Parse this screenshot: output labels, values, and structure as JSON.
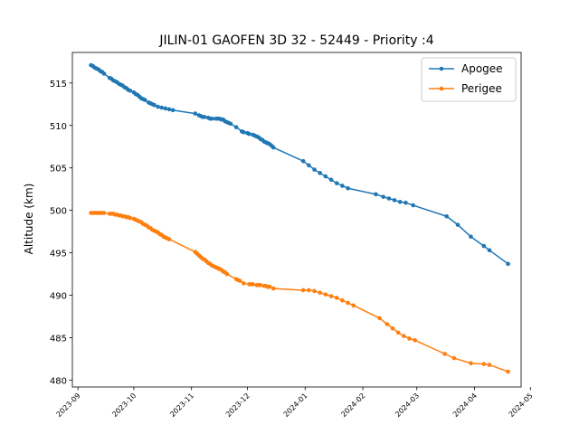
{
  "chart_data": {
    "type": "line",
    "title": "JILIN-01 GAOFEN 3D 32 - 52449 - Priority :4",
    "xlabel": "",
    "ylabel": "Altitude (km)",
    "x_type": "date",
    "xlim": [
      "2023-08-29",
      "2024-04-26"
    ],
    "ylim": [
      479.2,
      518.6
    ],
    "yticks": [
      480,
      485,
      490,
      495,
      500,
      505,
      510,
      515
    ],
    "xticks": [
      {
        "date": "2023-09-01",
        "label": "2023-09"
      },
      {
        "date": "2023-10-01",
        "label": "2023-10"
      },
      {
        "date": "2023-11-01",
        "label": "2023-11"
      },
      {
        "date": "2023-12-01",
        "label": "2023-12"
      },
      {
        "date": "2024-01-01",
        "label": "2024-01"
      },
      {
        "date": "2024-02-01",
        "label": "2024-02"
      },
      {
        "date": "2024-03-01",
        "label": "2024-03"
      },
      {
        "date": "2024-04-01",
        "label": "2024-04"
      },
      {
        "date": "2024-05-01",
        "label": "2024-05"
      }
    ],
    "legend_position": "upper right",
    "grid": false,
    "series": [
      {
        "name": "Apogee",
        "color": "#1f77b4",
        "marker": "circle",
        "points": [
          [
            "2023-09-08",
            517.1
          ],
          [
            "2023-09-09",
            517.0
          ],
          [
            "2023-09-10",
            516.8
          ],
          [
            "2023-09-11",
            516.7
          ],
          [
            "2023-09-12",
            516.6
          ],
          [
            "2023-09-13",
            516.4
          ],
          [
            "2023-09-14",
            516.3
          ],
          [
            "2023-09-15",
            516.1
          ],
          [
            "2023-09-18",
            515.6
          ],
          [
            "2023-09-19",
            515.5
          ],
          [
            "2023-09-20",
            515.3
          ],
          [
            "2023-09-21",
            515.2
          ],
          [
            "2023-09-22",
            515.1
          ],
          [
            "2023-09-23",
            514.9
          ],
          [
            "2023-09-24",
            514.8
          ],
          [
            "2023-09-25",
            514.7
          ],
          [
            "2023-09-26",
            514.5
          ],
          [
            "2023-09-27",
            514.4
          ],
          [
            "2023-09-28",
            514.2
          ],
          [
            "2023-09-29",
            514.1
          ],
          [
            "2023-10-01",
            513.9
          ],
          [
            "2023-10-02",
            513.7
          ],
          [
            "2023-10-03",
            513.6
          ],
          [
            "2023-10-04",
            513.4
          ],
          [
            "2023-10-05",
            513.2
          ],
          [
            "2023-10-06",
            513.1
          ],
          [
            "2023-10-07",
            513.0
          ],
          [
            "2023-10-09",
            512.7
          ],
          [
            "2023-10-10",
            512.6
          ],
          [
            "2023-10-11",
            512.5
          ],
          [
            "2023-10-12",
            512.4
          ],
          [
            "2023-10-14",
            512.2
          ],
          [
            "2023-10-16",
            512.1
          ],
          [
            "2023-10-18",
            512.0
          ],
          [
            "2023-10-20",
            511.9
          ],
          [
            "2023-10-22",
            511.8
          ],
          [
            "2023-11-03",
            511.4
          ],
          [
            "2023-11-05",
            511.2
          ],
          [
            "2023-11-06",
            511.1
          ],
          [
            "2023-11-07",
            511.0
          ],
          [
            "2023-11-08",
            511.0
          ],
          [
            "2023-11-10",
            510.9
          ],
          [
            "2023-11-11",
            510.8
          ],
          [
            "2023-11-12",
            510.8
          ],
          [
            "2023-11-14",
            510.8
          ],
          [
            "2023-11-15",
            510.8
          ],
          [
            "2023-11-16",
            510.8
          ],
          [
            "2023-11-17",
            510.7
          ],
          [
            "2023-11-18",
            510.7
          ],
          [
            "2023-11-19",
            510.5
          ],
          [
            "2023-11-20",
            510.4
          ],
          [
            "2023-11-21",
            510.3
          ],
          [
            "2023-11-22",
            510.2
          ],
          [
            "2023-11-25",
            509.8
          ],
          [
            "2023-11-28",
            509.3
          ],
          [
            "2023-11-29",
            509.2
          ],
          [
            "2023-12-01",
            509.1
          ],
          [
            "2023-12-02",
            509.0
          ],
          [
            "2023-12-04",
            508.9
          ],
          [
            "2023-12-05",
            508.8
          ],
          [
            "2023-12-06",
            508.7
          ],
          [
            "2023-12-07",
            508.6
          ],
          [
            "2023-12-08",
            508.4
          ],
          [
            "2023-12-09",
            508.3
          ],
          [
            "2023-12-10",
            508.1
          ],
          [
            "2023-12-11",
            508.0
          ],
          [
            "2023-12-12",
            507.9
          ],
          [
            "2023-12-13",
            507.8
          ],
          [
            "2023-12-14",
            507.6
          ],
          [
            "2023-12-15",
            507.4
          ],
          [
            "2023-12-31",
            505.8
          ],
          [
            "2024-01-03",
            505.3
          ],
          [
            "2024-01-06",
            504.8
          ],
          [
            "2024-01-09",
            504.4
          ],
          [
            "2024-01-12",
            504.0
          ],
          [
            "2024-01-15",
            503.6
          ],
          [
            "2024-01-18",
            503.2
          ],
          [
            "2024-01-21",
            502.9
          ],
          [
            "2024-01-24",
            502.6
          ],
          [
            "2024-02-08",
            501.9
          ],
          [
            "2024-02-12",
            501.6
          ],
          [
            "2024-02-15",
            501.4
          ],
          [
            "2024-02-18",
            501.2
          ],
          [
            "2024-02-21",
            501.0
          ],
          [
            "2024-02-24",
            500.9
          ],
          [
            "2024-02-28",
            500.6
          ],
          [
            "2024-03-17",
            499.3
          ],
          [
            "2024-03-23",
            498.3
          ],
          [
            "2024-03-30",
            496.9
          ],
          [
            "2024-04-06",
            495.8
          ],
          [
            "2024-04-09",
            495.3
          ],
          [
            "2024-04-19",
            493.7
          ]
        ]
      },
      {
        "name": "Perigee",
        "color": "#ff7f0e",
        "marker": "circle",
        "points": [
          [
            "2023-09-08",
            499.7
          ],
          [
            "2023-09-09",
            499.7
          ],
          [
            "2023-09-10",
            499.7
          ],
          [
            "2023-09-11",
            499.7
          ],
          [
            "2023-09-12",
            499.7
          ],
          [
            "2023-09-13",
            499.7
          ],
          [
            "2023-09-14",
            499.7
          ],
          [
            "2023-09-15",
            499.7
          ],
          [
            "2023-09-18",
            499.6
          ],
          [
            "2023-09-19",
            499.6
          ],
          [
            "2023-09-20",
            499.6
          ],
          [
            "2023-09-21",
            499.5
          ],
          [
            "2023-09-22",
            499.5
          ],
          [
            "2023-09-23",
            499.4
          ],
          [
            "2023-09-24",
            499.4
          ],
          [
            "2023-09-25",
            499.3
          ],
          [
            "2023-09-26",
            499.3
          ],
          [
            "2023-09-27",
            499.2
          ],
          [
            "2023-09-28",
            499.2
          ],
          [
            "2023-09-29",
            499.1
          ],
          [
            "2023-10-01",
            499.0
          ],
          [
            "2023-10-02",
            498.9
          ],
          [
            "2023-10-03",
            498.8
          ],
          [
            "2023-10-04",
            498.7
          ],
          [
            "2023-10-05",
            498.6
          ],
          [
            "2023-10-06",
            498.4
          ],
          [
            "2023-10-07",
            498.3
          ],
          [
            "2023-10-08",
            498.2
          ],
          [
            "2023-10-09",
            498.0
          ],
          [
            "2023-10-10",
            497.9
          ],
          [
            "2023-10-11",
            497.7
          ],
          [
            "2023-10-12",
            497.6
          ],
          [
            "2023-10-13",
            497.5
          ],
          [
            "2023-10-14",
            497.4
          ],
          [
            "2023-10-15",
            497.2
          ],
          [
            "2023-10-16",
            497.1
          ],
          [
            "2023-10-17",
            496.9
          ],
          [
            "2023-10-18",
            496.8
          ],
          [
            "2023-10-19",
            496.7
          ],
          [
            "2023-10-20",
            496.6
          ],
          [
            "2023-11-03",
            495.1
          ],
          [
            "2023-11-04",
            494.9
          ],
          [
            "2023-11-05",
            494.7
          ],
          [
            "2023-11-06",
            494.5
          ],
          [
            "2023-11-07",
            494.3
          ],
          [
            "2023-11-08",
            494.2
          ],
          [
            "2023-11-09",
            494.0
          ],
          [
            "2023-11-10",
            493.8
          ],
          [
            "2023-11-11",
            493.7
          ],
          [
            "2023-11-12",
            493.5
          ],
          [
            "2023-11-13",
            493.4
          ],
          [
            "2023-11-14",
            493.3
          ],
          [
            "2023-11-15",
            493.2
          ],
          [
            "2023-11-16",
            493.1
          ],
          [
            "2023-11-17",
            493.0
          ],
          [
            "2023-11-18",
            492.8
          ],
          [
            "2023-11-19",
            492.7
          ],
          [
            "2023-11-20",
            492.5
          ],
          [
            "2023-11-25",
            491.9
          ],
          [
            "2023-11-26",
            491.8
          ],
          [
            "2023-11-27",
            491.7
          ],
          [
            "2023-11-29",
            491.4
          ],
          [
            "2023-12-02",
            491.3
          ],
          [
            "2023-12-03",
            491.3
          ],
          [
            "2023-12-04",
            491.3
          ],
          [
            "2023-12-06",
            491.2
          ],
          [
            "2023-12-07",
            491.2
          ],
          [
            "2023-12-08",
            491.2
          ],
          [
            "2023-12-10",
            491.1
          ],
          [
            "2023-12-11",
            491.1
          ],
          [
            "2023-12-12",
            491.0
          ],
          [
            "2023-12-13",
            491.0
          ],
          [
            "2023-12-15",
            490.8
          ],
          [
            "2023-12-31",
            490.6
          ],
          [
            "2024-01-03",
            490.6
          ],
          [
            "2024-01-06",
            490.5
          ],
          [
            "2024-01-09",
            490.3
          ],
          [
            "2024-01-12",
            490.1
          ],
          [
            "2024-01-15",
            489.9
          ],
          [
            "2024-01-18",
            489.7
          ],
          [
            "2024-01-21",
            489.4
          ],
          [
            "2024-01-24",
            489.1
          ],
          [
            "2024-01-27",
            488.8
          ],
          [
            "2024-02-10",
            487.3
          ],
          [
            "2024-02-14",
            486.6
          ],
          [
            "2024-02-17",
            486.1
          ],
          [
            "2024-02-20",
            485.6
          ],
          [
            "2024-02-23",
            485.2
          ],
          [
            "2024-02-26",
            484.9
          ],
          [
            "2024-02-29",
            484.7
          ],
          [
            "2024-03-16",
            483.1
          ],
          [
            "2024-03-21",
            482.6
          ],
          [
            "2024-03-30",
            482.0
          ],
          [
            "2024-04-06",
            481.9
          ],
          [
            "2024-04-09",
            481.8
          ],
          [
            "2024-04-19",
            481.0
          ]
        ]
      }
    ]
  }
}
